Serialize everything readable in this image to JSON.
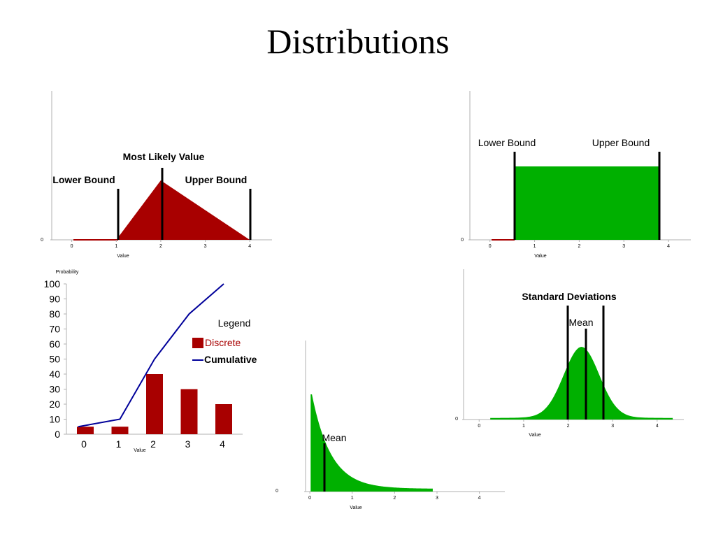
{
  "page": {
    "title": "Distributions"
  },
  "chart_data": [
    {
      "id": "triangular",
      "type": "area",
      "xlabel": "Value",
      "x_ticks": [
        0,
        1,
        2,
        3,
        4
      ],
      "y_ticks": [
        0
      ],
      "xlim": [
        -0.45,
        4.5
      ],
      "points": [
        [
          1,
          0
        ],
        [
          2,
          1
        ],
        [
          4,
          0
        ]
      ],
      "fill": "#a80000",
      "annotations": [
        {
          "label": "Lower Bound",
          "x": 1
        },
        {
          "label": "Most Likely Value",
          "x": 2
        },
        {
          "label": "Upper Bound",
          "x": 4
        }
      ]
    },
    {
      "id": "uniform",
      "type": "area",
      "xlabel": "Value",
      "x_ticks": [
        0,
        1,
        2,
        3,
        4
      ],
      "y_ticks": [
        0
      ],
      "xlim": [
        -0.45,
        4.5
      ],
      "points": [
        [
          0.55,
          0
        ],
        [
          0.55,
          1
        ],
        [
          3.8,
          1
        ],
        [
          3.8,
          0
        ]
      ],
      "fill": "#00b000",
      "annotations": [
        {
          "label": "Lower Bound",
          "x": 0.55
        },
        {
          "label": "Upper Bound",
          "x": 3.8
        }
      ]
    },
    {
      "id": "discrete",
      "type": "bar",
      "ylabel": "Probability",
      "xlabel": "Value",
      "categories": [
        "0",
        "1",
        "2",
        "3",
        "4"
      ],
      "ylim": [
        0,
        100
      ],
      "y_ticks": [
        0,
        10,
        20,
        30,
        40,
        50,
        60,
        70,
        80,
        90,
        100
      ],
      "series": [
        {
          "name": "Discrete",
          "type": "bar",
          "color": "#a80000",
          "values": [
            5,
            5,
            40,
            30,
            20
          ]
        },
        {
          "name": "Cumulative",
          "type": "line",
          "color": "#00009a",
          "values": [
            5,
            10,
            50,
            80,
            100
          ]
        }
      ],
      "legend": {
        "title": "Legend",
        "position": "right"
      }
    },
    {
      "id": "normal",
      "type": "area",
      "xlabel": "Value",
      "x_ticks": [
        0,
        1,
        2,
        3,
        4
      ],
      "y_ticks": [
        0
      ],
      "xlim": [
        -0.35,
        4.6
      ],
      "mean": 2.3,
      "sd": 0.4,
      "range": [
        0.25,
        4.35
      ],
      "fill": "#00b000",
      "annotations": [
        {
          "label": "Standard Deviations"
        },
        {
          "label": "Mean",
          "x": 2.3
        }
      ]
    },
    {
      "id": "exponential",
      "type": "area",
      "xlabel": "Value",
      "x_ticks": [
        0,
        1,
        2,
        3,
        4
      ],
      "y_ticks": [
        0
      ],
      "xlim": [
        -0.1,
        4.6
      ],
      "mean": 0.45,
      "range": [
        0.05,
        2.9
      ],
      "fill": "#00b000",
      "annotations": [
        {
          "label": "Mean",
          "x": 0.45
        }
      ]
    }
  ]
}
